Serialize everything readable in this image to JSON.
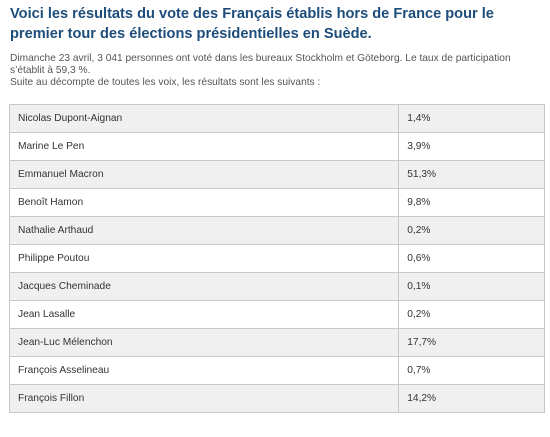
{
  "heading": "Voici les résultats du vote des Français établis hors de France pour le premier tour des élections présidentielles en Suède.",
  "intro": {
    "line1": "Dimanche 23 avril, 3 041 personnes ont voté dans les bureaux Stockholm et Göteborg. Le taux de participation s’établit à 59,3 %.",
    "line2": "Suite au décompte de toutes les voix, les résultats sont les suivants :"
  },
  "results": [
    {
      "candidate": "Nicolas Dupont-Aignan",
      "percent": "1,4%"
    },
    {
      "candidate": "Marine Le Pen",
      "percent": "3,9%"
    },
    {
      "candidate": "Emmanuel Macron",
      "percent": "51,3%"
    },
    {
      "candidate": "Benoît Hamon",
      "percent": "9,8%"
    },
    {
      "candidate": "Nathalie Arthaud",
      "percent": "0,2%"
    },
    {
      "candidate": "Philippe Poutou",
      "percent": "0,6%"
    },
    {
      "candidate": "Jacques Cheminade",
      "percent": "0,1%"
    },
    {
      "candidate": "Jean Lasalle",
      "percent": "0,2%"
    },
    {
      "candidate": "Jean-Luc Mélenchon",
      "percent": "17,7%"
    },
    {
      "candidate": "François Asselineau",
      "percent": "0,7%"
    },
    {
      "candidate": "François Fillon",
      "percent": "14,2%"
    }
  ],
  "colors": {
    "heading": "#1d4d7a",
    "row_odd": "#f0f0f0",
    "row_even": "#ffffff",
    "border": "#c8c8c8"
  }
}
